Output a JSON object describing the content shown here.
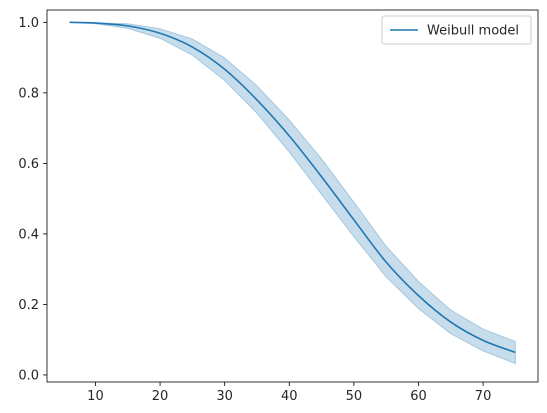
{
  "chart_data": {
    "type": "line",
    "title": "",
    "xlabel": "",
    "ylabel": "",
    "xlim": [
      2.5,
      78.5
    ],
    "ylim": [
      -0.02,
      1.035
    ],
    "x_ticks": [
      10,
      20,
      30,
      40,
      50,
      60,
      70
    ],
    "x_tick_labels": [
      "10",
      "20",
      "30",
      "40",
      "50",
      "60",
      "70"
    ],
    "y_ticks": [
      0.0,
      0.2,
      0.4,
      0.6,
      0.8,
      1.0
    ],
    "y_tick_labels": [
      "0.0",
      "0.2",
      "0.4",
      "0.6",
      "0.8",
      "1.0"
    ],
    "grid": false,
    "legend": {
      "position": "top-right",
      "entries": [
        "Weibull model"
      ]
    },
    "series": [
      {
        "name": "Weibull model",
        "color": "#1f77b4",
        "band_color": "#1f77b4",
        "x": [
          6,
          10,
          15,
          20,
          25,
          30,
          35,
          40,
          45,
          50,
          55,
          60,
          65,
          70,
          75
        ],
        "y": [
          1.0,
          0.998,
          0.99,
          0.969,
          0.93,
          0.867,
          0.78,
          0.678,
          0.562,
          0.44,
          0.32,
          0.225,
          0.15,
          0.098,
          0.064
        ],
        "lower": [
          1.0,
          0.996,
          0.983,
          0.955,
          0.907,
          0.835,
          0.742,
          0.632,
          0.512,
          0.392,
          0.278,
          0.188,
          0.117,
          0.068,
          0.032
        ],
        "upper": [
          1.0,
          0.999,
          0.996,
          0.982,
          0.953,
          0.899,
          0.82,
          0.723,
          0.613,
          0.49,
          0.365,
          0.265,
          0.184,
          0.13,
          0.095
        ]
      }
    ]
  }
}
